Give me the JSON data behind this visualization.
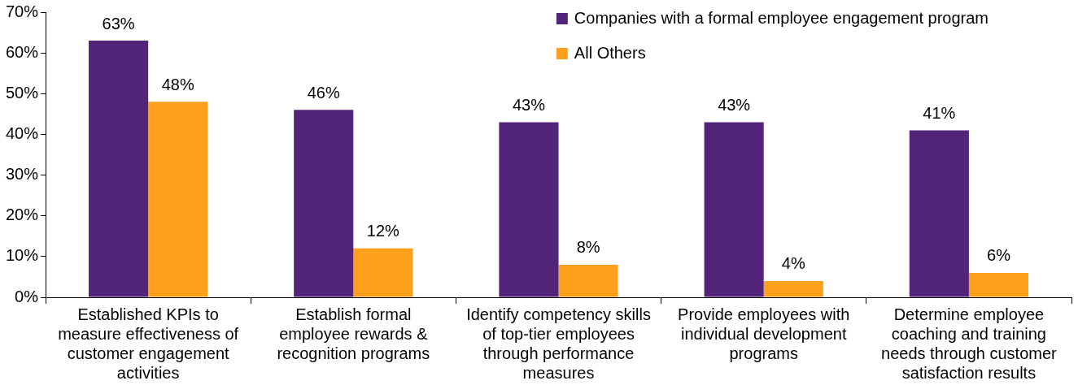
{
  "chart_data": {
    "type": "bar",
    "categories": [
      "Established KPIs to measure effectiveness of customer engagement activities",
      "Establish formal employee rewards & recognition programs",
      "Identify competency skills of top-tier employees through performance measures",
      "Provide employees with individual development programs",
      "Determine employee coaching and training needs through customer satisfaction results"
    ],
    "series": [
      {
        "name": "Companies with a formal employee engagement program",
        "color": "#52247a",
        "values": [
          63,
          46,
          43,
          43,
          41
        ],
        "value_labels": [
          "63%",
          "46%",
          "43%",
          "43%",
          "41%"
        ]
      },
      {
        "name": "All Others",
        "color": "#ffa01c",
        "values": [
          48,
          12,
          8,
          4,
          6
        ],
        "value_labels": [
          "48%",
          "12%",
          "8%",
          "4%",
          "6%"
        ]
      }
    ],
    "ylim": [
      0,
      70
    ],
    "yticks": [
      {
        "value": 0,
        "label": "0%"
      },
      {
        "value": 10,
        "label": "10%"
      },
      {
        "value": 20,
        "label": "20%"
      },
      {
        "value": 30,
        "label": "30%"
      },
      {
        "value": 40,
        "label": "40%"
      },
      {
        "value": 50,
        "label": "50%"
      },
      {
        "value": 60,
        "label": "60%"
      },
      {
        "value": 70,
        "label": "70%"
      }
    ],
    "grid": false,
    "legend": "top right"
  }
}
